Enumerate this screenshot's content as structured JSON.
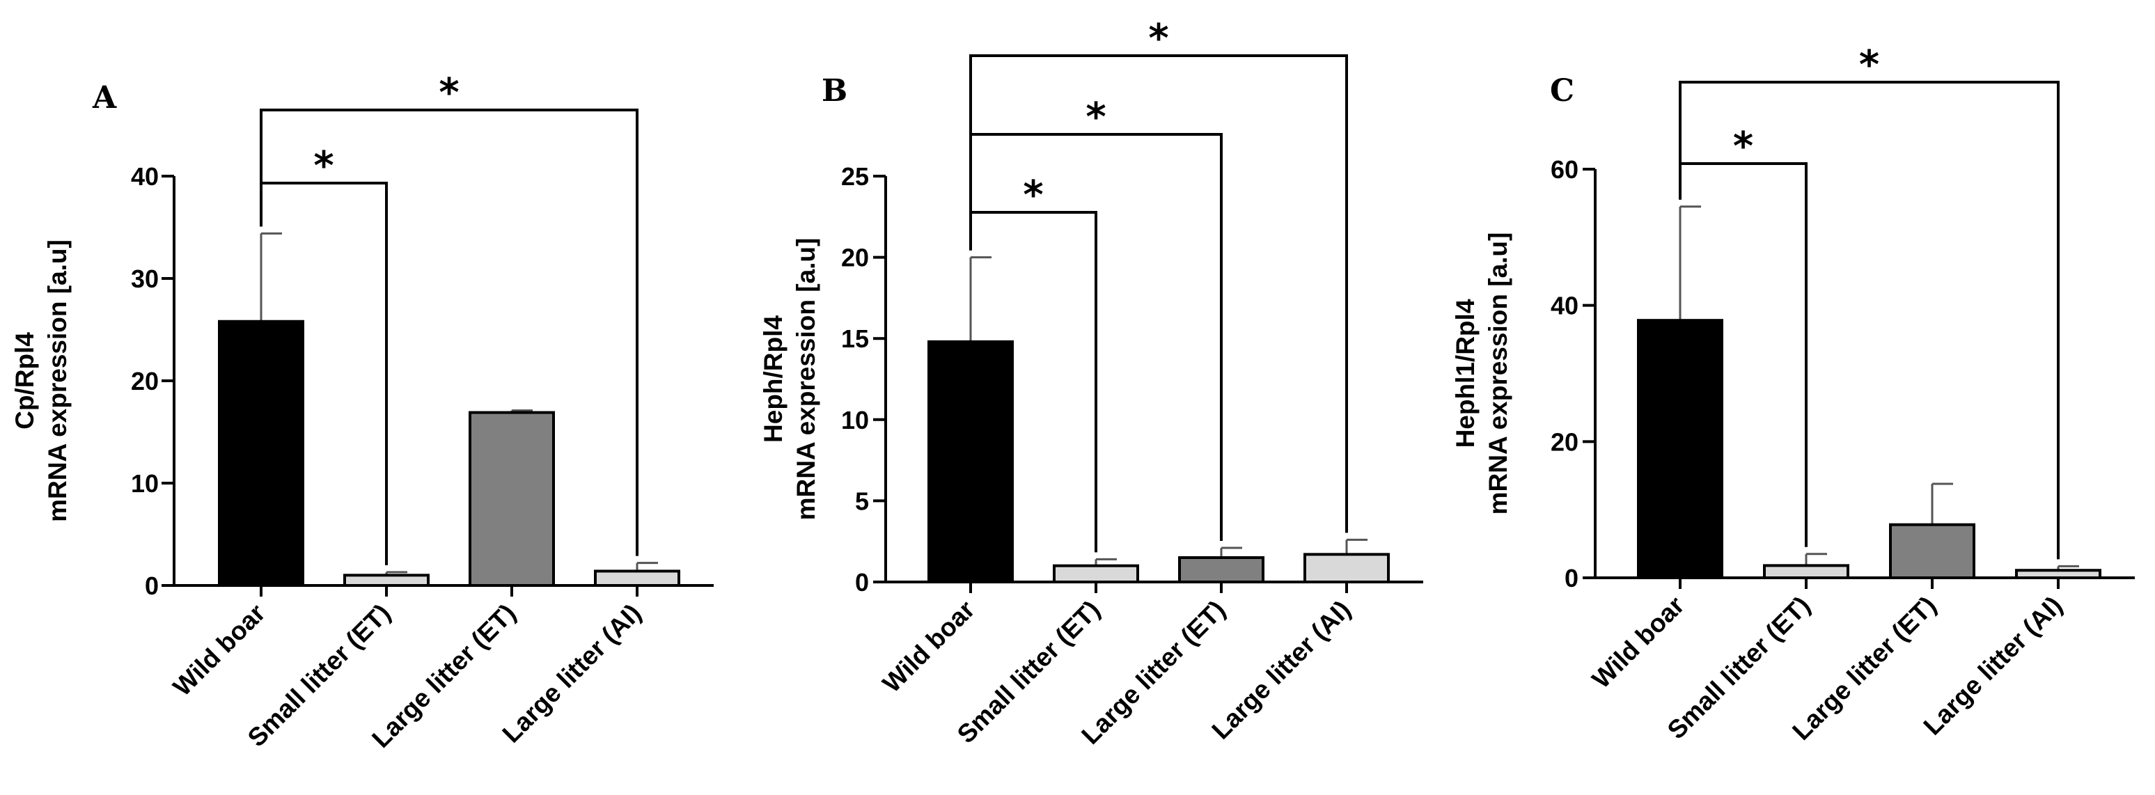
{
  "chart_data": [
    {
      "type": "bar",
      "panel_label": "A",
      "ylabel_line1": "Cp/Rpl4",
      "ylabel_line2": "mRNA expression [a.u]",
      "categories": [
        "Wild boar",
        "Small litter (ET)",
        "Large litter (ET)",
        "Large litter (AI)"
      ],
      "values": [
        25.8,
        1.0,
        16.9,
        1.4
      ],
      "errors": [
        8.6,
        0.3,
        0.2,
        0.8
      ],
      "ylim": [
        0,
        40
      ],
      "yticks": [
        "0",
        "10",
        "20",
        "30",
        "40"
      ],
      "bar_colors": [
        "#000000",
        "#d9d9d9",
        "#808080",
        "#d9d9d9"
      ],
      "significance": [
        {
          "from": 0,
          "to": 1,
          "label": "*"
        },
        {
          "from": 0,
          "to": 3,
          "label": "*"
        }
      ]
    },
    {
      "type": "bar",
      "panel_label": "B",
      "ylabel_line1": "Heph/Rpl4",
      "ylabel_line2": "mRNA expression [a.u]",
      "categories": [
        "Wild boar",
        "Small litter (ET)",
        "Large litter (ET)",
        "Large litter (AI)"
      ],
      "values": [
        14.8,
        1.0,
        1.5,
        1.7
      ],
      "errors": [
        5.2,
        0.4,
        0.6,
        0.9
      ],
      "ylim": [
        0,
        25
      ],
      "yticks": [
        "0",
        "5",
        "10",
        "15",
        "20",
        "25"
      ],
      "bar_colors": [
        "#000000",
        "#d9d9d9",
        "#808080",
        "#d9d9d9"
      ],
      "significance": [
        {
          "from": 0,
          "to": 1,
          "label": "*"
        },
        {
          "from": 0,
          "to": 2,
          "label": "*"
        },
        {
          "from": 0,
          "to": 3,
          "label": "*"
        }
      ]
    },
    {
      "type": "bar",
      "panel_label": "C",
      "ylabel_line1": "Hephl1/Rpl4",
      "ylabel_line2": "mRNA expression [a.u]",
      "categories": [
        "Wild boar",
        "Small litter (ET)",
        "Large litter (ET)",
        "Large litter (AI)"
      ],
      "values": [
        37.8,
        1.8,
        7.8,
        1.1
      ],
      "errors": [
        16.7,
        1.7,
        6.0,
        0.6
      ],
      "ylim": [
        0,
        60
      ],
      "yticks": [
        "0",
        "20",
        "40",
        "60"
      ],
      "bar_colors": [
        "#000000",
        "#d9d9d9",
        "#808080",
        "#d9d9d9"
      ],
      "significance": [
        {
          "from": 0,
          "to": 1,
          "label": "*"
        },
        {
          "from": 0,
          "to": 3,
          "label": "*"
        }
      ]
    }
  ]
}
